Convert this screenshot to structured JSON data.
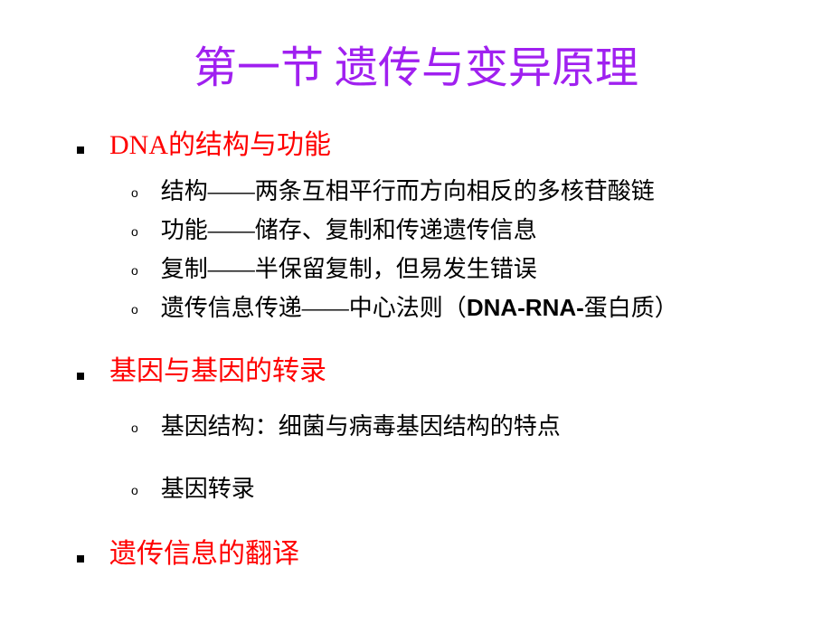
{
  "title": "第一节  遗传与变异原理",
  "colors": {
    "title_color": "#a020f0",
    "heading_color": "#ff0000",
    "body_color": "#000000",
    "background": "#ffffff"
  },
  "fonts": {
    "title_fontsize": 48,
    "heading_fontsize": 30,
    "body_fontsize": 26
  },
  "sections": [
    {
      "heading": "DNA的结构与功能",
      "items": [
        "结构——两条互相平行而方向相反的多核苷酸链",
        "功能——储存、复制和传递遗传信息",
        "复制——半保留复制，但易发生错误"
      ],
      "special_item": {
        "prefix": "遗传信息传递——中心法则（",
        "bold": "DNA-RNA-",
        "suffix": "蛋白质）"
      }
    },
    {
      "heading": "基因与基因的转录",
      "items": [
        "基因结构：细菌与病毒基因结构的特点",
        "基因转录"
      ]
    },
    {
      "heading": "遗传信息的翻译",
      "items": []
    }
  ]
}
